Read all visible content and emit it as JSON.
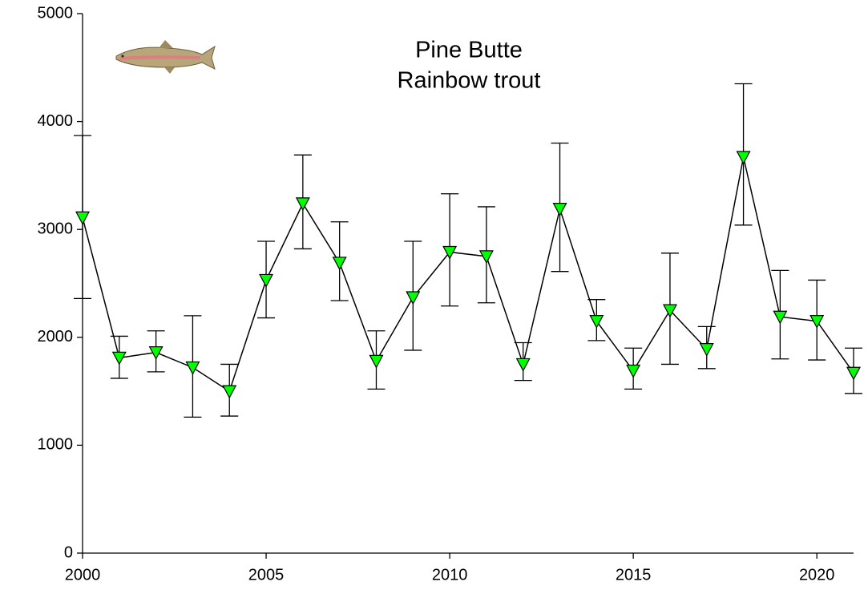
{
  "chart_data": {
    "type": "line",
    "title": "Pine Butte",
    "subtitle": "Rainbow trout",
    "x": [
      2000,
      2001,
      2002,
      2003,
      2004,
      2005,
      2006,
      2007,
      2008,
      2009,
      2010,
      2011,
      2012,
      2013,
      2014,
      2015,
      2016,
      2017,
      2018,
      2019,
      2020,
      2021
    ],
    "series": [
      {
        "color": "#00ff00",
        "values": [
          3110,
          1810,
          1860,
          1720,
          1500,
          2530,
          3240,
          2690,
          1780,
          2370,
          2790,
          2750,
          1750,
          3190,
          2150,
          1690,
          2250,
          1890,
          3670,
          2190,
          2150,
          1670
        ],
        "error_low": [
          2360,
          1620,
          1680,
          1260,
          1270,
          2180,
          2820,
          2340,
          1520,
          1880,
          2290,
          2320,
          1600,
          2610,
          1970,
          1520,
          1750,
          1710,
          3040,
          1800,
          1790,
          1480
        ],
        "error_high": [
          3870,
          2010,
          2060,
          2200,
          1750,
          2890,
          3690,
          3070,
          2060,
          2890,
          3330,
          3210,
          1950,
          3800,
          2350,
          1900,
          2780,
          2100,
          4350,
          2620,
          2530,
          1900
        ]
      }
    ],
    "xlim": [
      2000,
      2021
    ],
    "xticks": [
      2000,
      2005,
      2010,
      2015,
      2020
    ],
    "ylim": [
      0,
      5000
    ],
    "yticks": [
      0,
      1000,
      2000,
      3000,
      4000,
      5000
    ]
  }
}
